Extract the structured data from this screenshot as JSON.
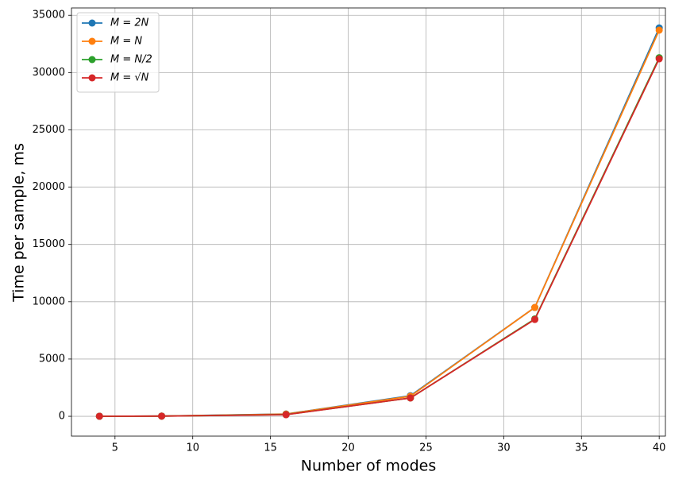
{
  "chart_data": {
    "type": "line",
    "x_label": "Number of modes",
    "y_label": "Time per sample, ms",
    "x": [
      4,
      8,
      16,
      24,
      32,
      40
    ],
    "series": [
      {
        "name": "M = 2N",
        "color": "#1f77b4",
        "values": [
          5,
          20,
          200,
          1800,
          9500,
          33900
        ]
      },
      {
        "name": "M = N",
        "color": "#ff7f0e",
        "values": [
          5,
          20,
          190,
          1750,
          9500,
          33700
        ]
      },
      {
        "name": "M = N/2",
        "color": "#2ca02c",
        "values": [
          5,
          15,
          150,
          1600,
          8500,
          31300
        ]
      },
      {
        "name": "M = √N",
        "color": "#d62728",
        "values": [
          5,
          15,
          140,
          1600,
          8450,
          31200
        ]
      }
    ],
    "xlim": [
      2.2,
      40.4
    ],
    "xticks": [
      5,
      10,
      15,
      20,
      25,
      30,
      35,
      40
    ],
    "ylim": [
      -1730,
      35640
    ],
    "yticks": [
      0,
      5000,
      10000,
      15000,
      20000,
      25000,
      30000,
      35000
    ],
    "grid": true,
    "legend": "upper left",
    "marker": "circle"
  }
}
